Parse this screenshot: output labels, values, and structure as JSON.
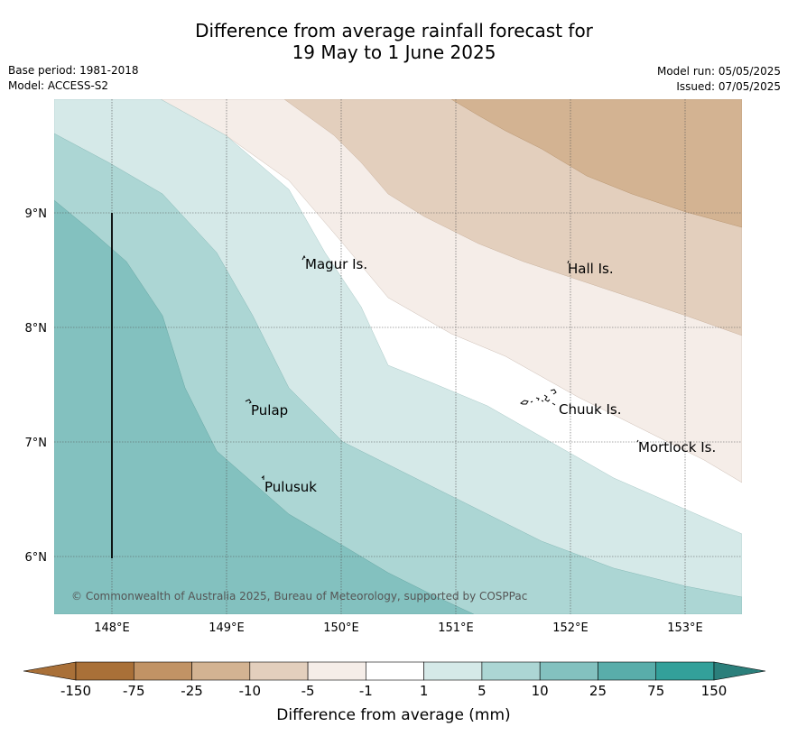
{
  "title": {
    "line1": "Difference from average rainfall forecast for",
    "line2": "19 May to 1 June 2025"
  },
  "meta": {
    "base_period": "Base period: 1981-2018",
    "model": "Model: ACCESS-S2",
    "model_run": "Model run: 05/05/2025",
    "issued": "Issued: 07/05/2025"
  },
  "map": {
    "lon_labels": [
      "148°E",
      "149°E",
      "150°E",
      "151°E",
      "152°E",
      "153°E"
    ],
    "lat_labels": [
      "9°N",
      "8°N",
      "7°N",
      "6°N"
    ],
    "places": {
      "magur": "Magur Is.",
      "hall": "Hall Is.",
      "pulap": "Pulap",
      "chuuk": "Chuuk Is.",
      "mortlock": "Mortlock Is.",
      "pulusuk": "Pulusuk"
    },
    "copyright": "© Commonwealth of Australia 2025, Bureau of Meteorology, supported by COSPPac"
  },
  "colorbar": {
    "tick_labels": [
      "-150",
      "-75",
      "-25",
      "-10",
      "-5",
      "-1",
      "1",
      "5",
      "10",
      "25",
      "75",
      "150"
    ],
    "colors": [
      "#a97038",
      "#c19365",
      "#d3b392",
      "#e3cfbd",
      "#f5ede8",
      "#ffffff",
      "#d5e9e8",
      "#acd6d4",
      "#83c1bf",
      "#59adaa",
      "#33a09a",
      "#2b7f7b"
    ],
    "title": "Difference from average (mm)"
  }
}
